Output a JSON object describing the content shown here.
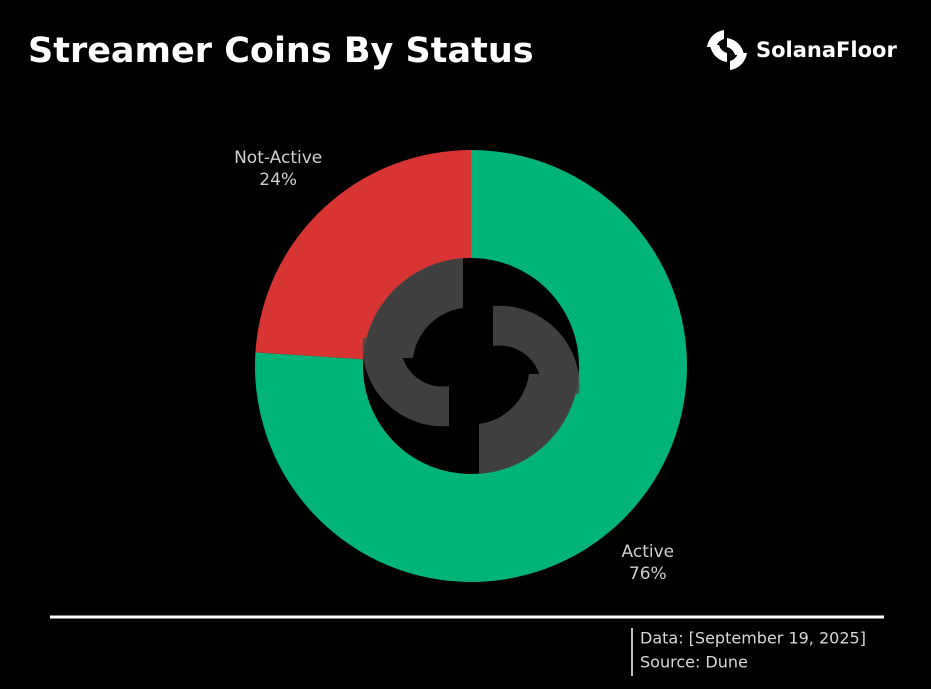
{
  "brand": "SolanaFloor",
  "chart_data": {
    "type": "donut",
    "title": "Streamer Coins By Status",
    "categories": [
      "Active",
      "Not-Active"
    ],
    "values": [
      76,
      24
    ],
    "value_labels": [
      "76%",
      "24%"
    ],
    "colors": [
      "#00b378",
      "#d93434"
    ]
  },
  "footer": {
    "data": "Data: [September 19, 2025]",
    "source": "Source: Dune"
  }
}
